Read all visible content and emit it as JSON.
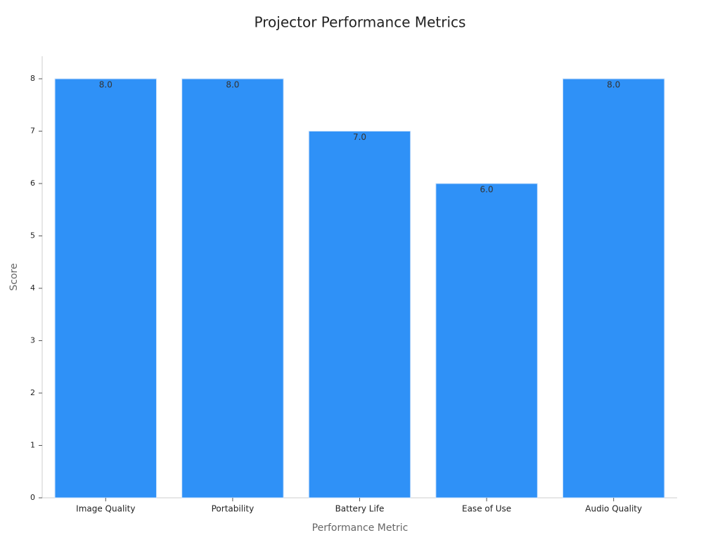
{
  "chart_data": {
    "type": "bar",
    "title": "Projector Performance Metrics",
    "x_label": "Performance Metric",
    "y_label": "Score",
    "categories": [
      "Image Quality",
      "Portability",
      "Battery Life",
      "Ease of Use",
      "Audio Quality"
    ],
    "values": [
      8,
      8,
      7,
      6,
      8
    ],
    "value_labels": [
      "8.0",
      "8.0",
      "7.0",
      "6.0",
      "8.0"
    ],
    "color": "#2f91f7",
    "ylim": [
      0,
      8.43
    ],
    "yticks": [
      0,
      1,
      2,
      3,
      4,
      5,
      6,
      7,
      8
    ],
    "grid": false
  }
}
